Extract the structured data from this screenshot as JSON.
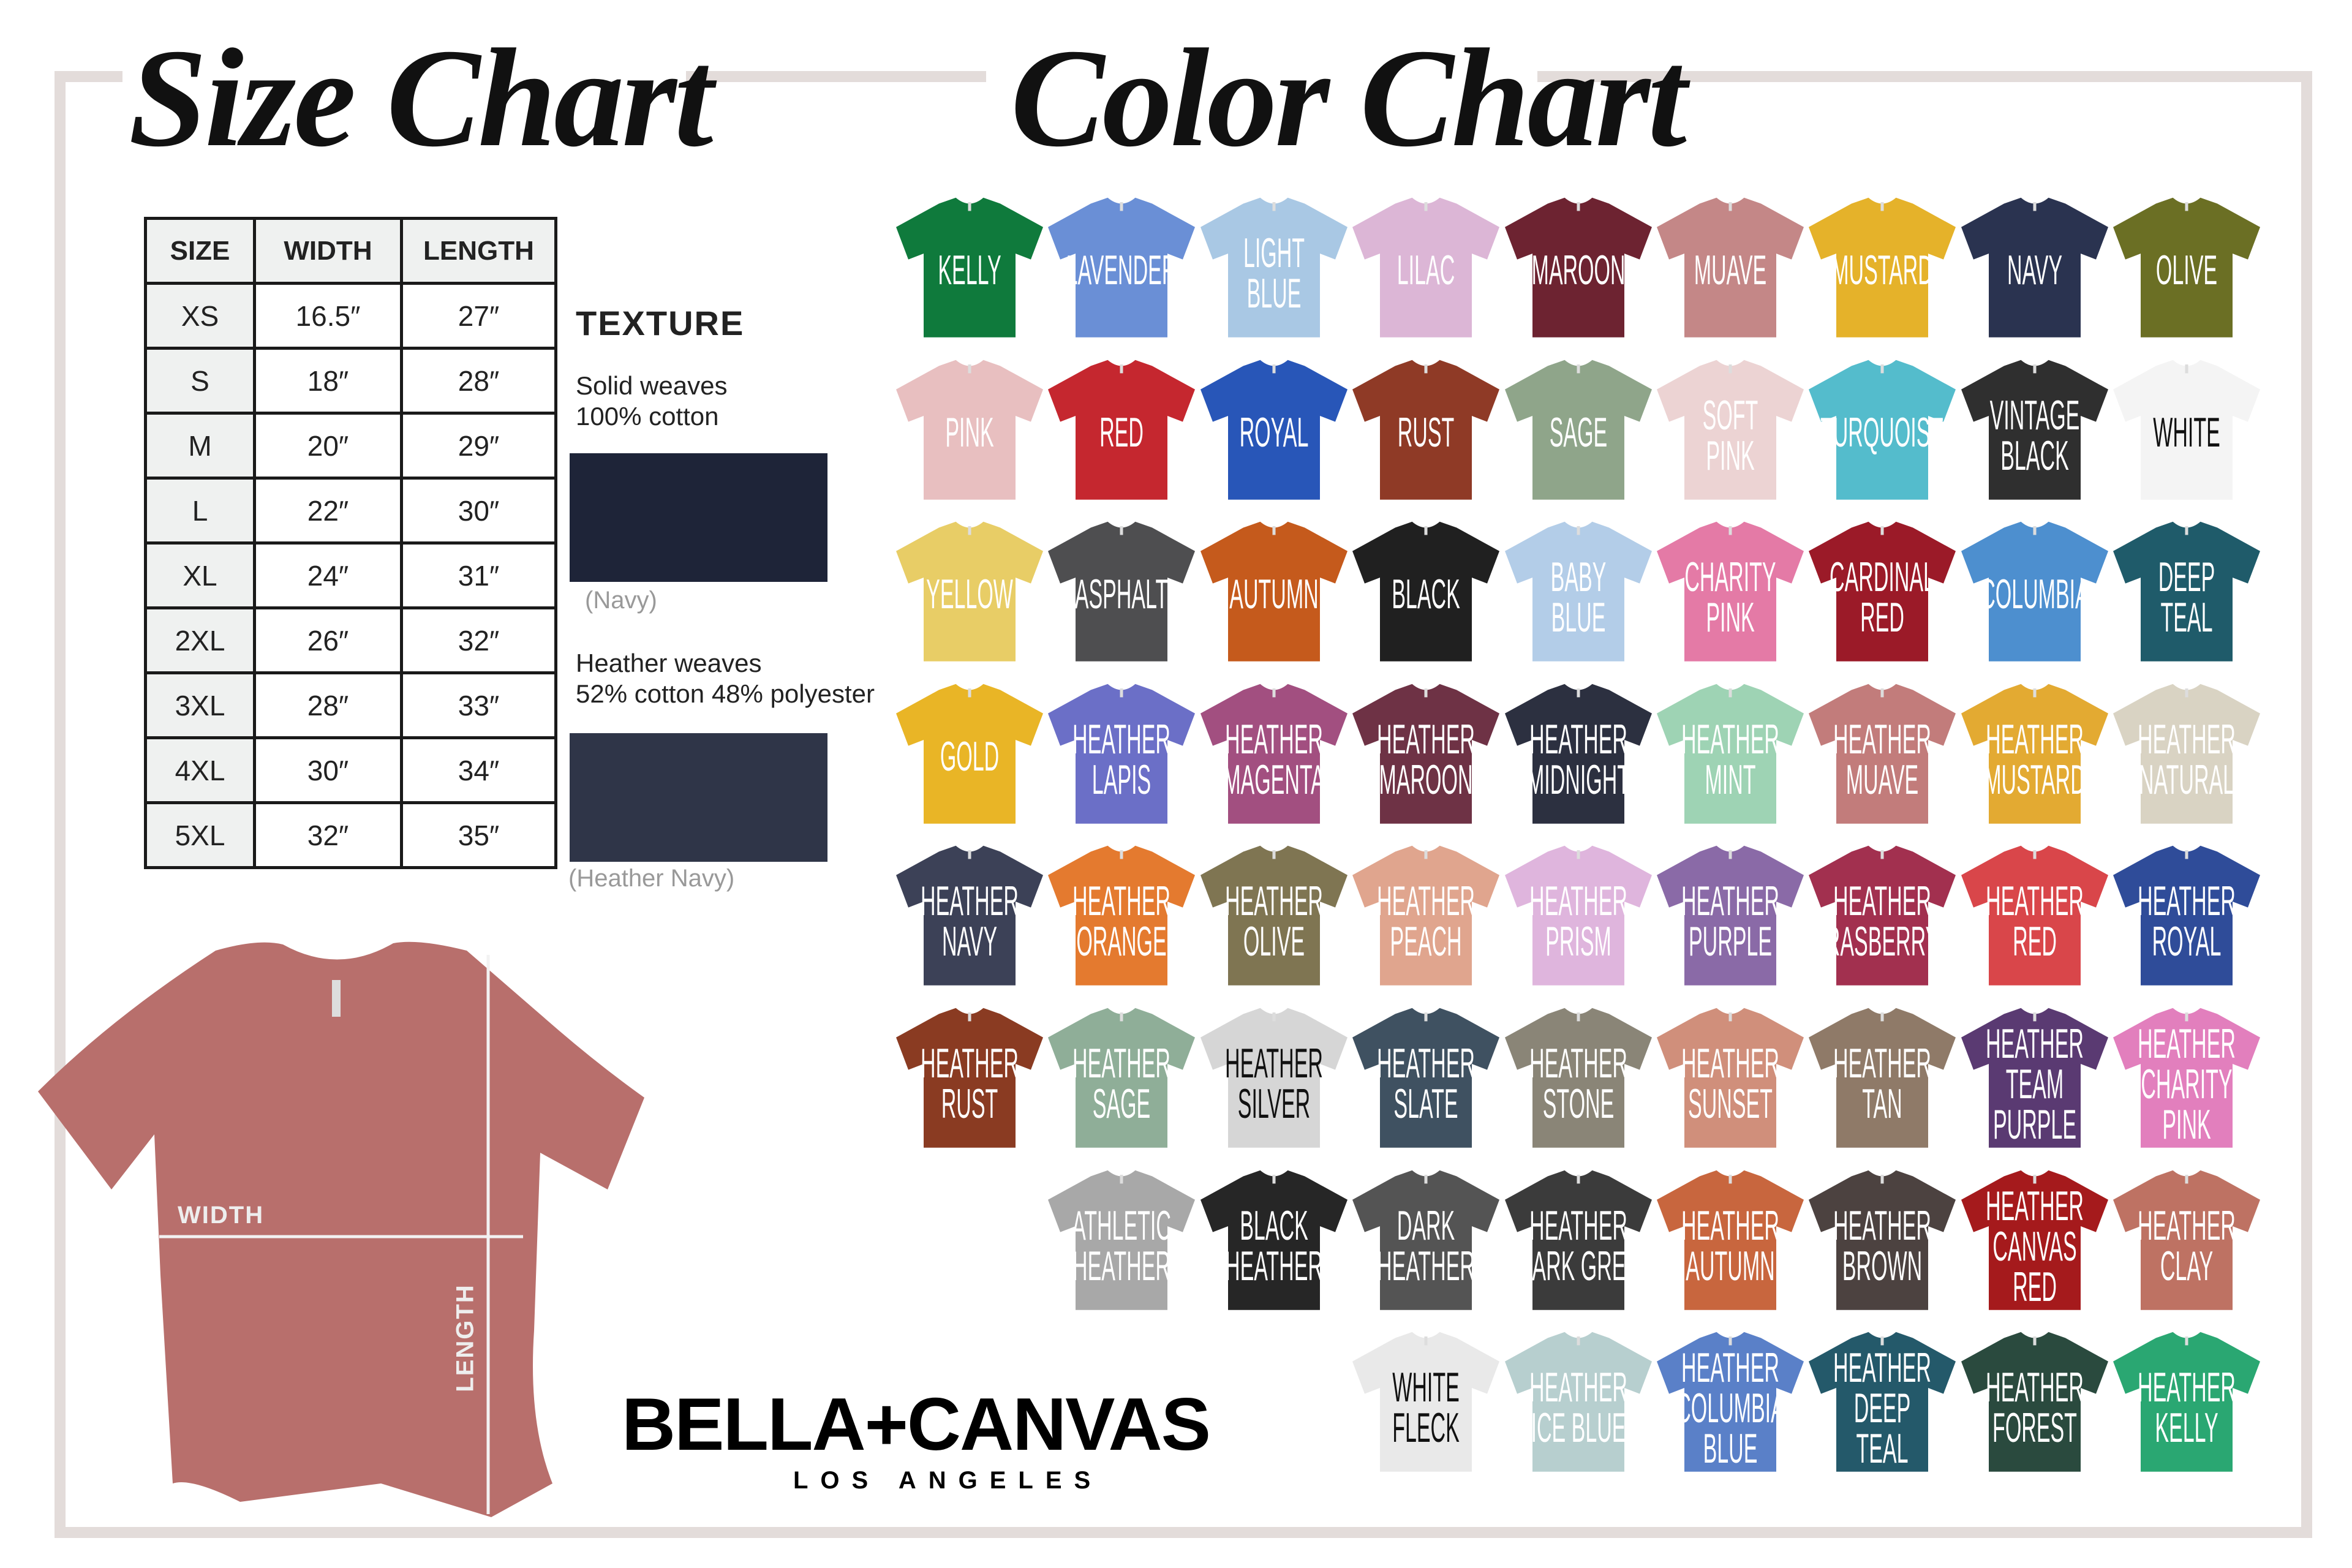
{
  "titles": {
    "size_chart": "Size Chart",
    "color_chart": "Color Chart"
  },
  "size_table": {
    "headers": [
      "SIZE",
      "WIDTH",
      "LENGTH"
    ],
    "rows": [
      [
        "XS",
        "16.5″",
        "27″"
      ],
      [
        "S",
        "18″",
        "28″"
      ],
      [
        "M",
        "20″",
        "29″"
      ],
      [
        "L",
        "22″",
        "30″"
      ],
      [
        "XL",
        "24″",
        "31″"
      ],
      [
        "2XL",
        "26″",
        "32″"
      ],
      [
        "3XL",
        "28″",
        "33″"
      ],
      [
        "4XL",
        "30″",
        "34″"
      ],
      [
        "5XL",
        "32″",
        "35″"
      ]
    ]
  },
  "texture": {
    "title": "TEXTURE",
    "solid_line1": "Solid weaves",
    "solid_line2": "100% cotton",
    "solid_caption": "(Navy)",
    "solid_color": "#1e2438",
    "heather_line1": "Heather weaves",
    "heather_line2": "52% cotton 48% polyester",
    "heather_caption": "(Heather Navy)",
    "heather_color": "#2f3548"
  },
  "illustration": {
    "width_label": "WIDTH",
    "length_label": "LENGTH",
    "shirt_color": "#b86f6c"
  },
  "brand": {
    "name": "BELLA+CANVAS",
    "location": "LOS ANGELES"
  },
  "frame_color": "#e3dcda",
  "colors": [
    {
      "row": 0,
      "col": 0,
      "name": "KELLY",
      "hex": "#0f7a3c"
    },
    {
      "row": 0,
      "col": 1,
      "name": "LAVENDER",
      "hex": "#6a8fd6"
    },
    {
      "row": 0,
      "col": 2,
      "name": "LIGHT BLUE",
      "hex": "#a9c8e4"
    },
    {
      "row": 0,
      "col": 3,
      "name": "LILAC",
      "hex": "#dcb6d6"
    },
    {
      "row": 0,
      "col": 4,
      "name": "MAROON",
      "hex": "#6d2331"
    },
    {
      "row": 0,
      "col": 5,
      "name": "MUAVE",
      "hex": "#c48787"
    },
    {
      "row": 0,
      "col": 6,
      "name": "MUSTARD",
      "hex": "#e5b22a"
    },
    {
      "row": 0,
      "col": 7,
      "name": "NAVY",
      "hex": "#2a3350"
    },
    {
      "row": 0,
      "col": 8,
      "name": "OLIVE",
      "hex": "#6b6f24"
    },
    {
      "row": 1,
      "col": 0,
      "name": "PINK",
      "hex": "#e8bfc0"
    },
    {
      "row": 1,
      "col": 1,
      "name": "RED",
      "hex": "#c5272f"
    },
    {
      "row": 1,
      "col": 2,
      "name": "ROYAL",
      "hex": "#2856b8"
    },
    {
      "row": 1,
      "col": 3,
      "name": "RUST",
      "hex": "#8f3a26"
    },
    {
      "row": 1,
      "col": 4,
      "name": "SAGE",
      "hex": "#8fa58a"
    },
    {
      "row": 1,
      "col": 5,
      "name": "SOFT PINK",
      "hex": "#ecd3d3"
    },
    {
      "row": 1,
      "col": 6,
      "name": "TURQUOISE",
      "hex": "#54bccc"
    },
    {
      "row": 1,
      "col": 7,
      "name": "VINTAGE BLACK",
      "hex": "#2f2f2f"
    },
    {
      "row": 1,
      "col": 8,
      "name": "WHITE",
      "hex": "#f4f4f4",
      "text": "#111111"
    },
    {
      "row": 2,
      "col": 0,
      "name": "YELLOW",
      "hex": "#e8cd66"
    },
    {
      "row": 2,
      "col": 1,
      "name": "ASPHALT",
      "hex": "#4e4e50"
    },
    {
      "row": 2,
      "col": 2,
      "name": "AUTUMN",
      "hex": "#c55a1c"
    },
    {
      "row": 2,
      "col": 3,
      "name": "BLACK",
      "hex": "#202020"
    },
    {
      "row": 2,
      "col": 4,
      "name": "BABY BLUE",
      "hex": "#b3cde8"
    },
    {
      "row": 2,
      "col": 5,
      "name": "CHARITY PINK",
      "hex": "#e47aa6"
    },
    {
      "row": 2,
      "col": 6,
      "name": "CARDINAL RED",
      "hex": "#9b1a28"
    },
    {
      "row": 2,
      "col": 7,
      "name": "COLUMBIA",
      "hex": "#4d8fcf"
    },
    {
      "row": 2,
      "col": 8,
      "name": "DEEP TEAL",
      "hex": "#1f5b6a"
    },
    {
      "row": 3,
      "col": 0,
      "name": "GOLD",
      "hex": "#e9b526"
    },
    {
      "row": 3,
      "col": 1,
      "name": "HEATHER LAPIS",
      "hex": "#6b6fc7"
    },
    {
      "row": 3,
      "col": 2,
      "name": "HEATHER MAGENTA",
      "hex": "#a24f80"
    },
    {
      "row": 3,
      "col": 3,
      "name": "HEATHER MAROON",
      "hex": "#6e3245"
    },
    {
      "row": 3,
      "col": 4,
      "name": "HEATHER MIDNIGHT",
      "hex": "#2c3040"
    },
    {
      "row": 3,
      "col": 5,
      "name": "HEATHER MINT",
      "hex": "#9ed3b4"
    },
    {
      "row": 3,
      "col": 6,
      "name": "HEATHER MUAVE",
      "hex": "#c27c7b"
    },
    {
      "row": 3,
      "col": 7,
      "name": "HEATHER MUSTARD",
      "hex": "#e3aa32"
    },
    {
      "row": 3,
      "col": 8,
      "name": "HEATHER NATURAL",
      "hex": "#d9d3c3"
    },
    {
      "row": 4,
      "col": 0,
      "name": "HEATHER NAVY",
      "hex": "#3c4157"
    },
    {
      "row": 4,
      "col": 1,
      "name": "HEATHER ORANGE",
      "hex": "#e47a2f"
    },
    {
      "row": 4,
      "col": 2,
      "name": "HEATHER OLIVE",
      "hex": "#7f7552"
    },
    {
      "row": 4,
      "col": 3,
      "name": "HEATHER PEACH",
      "hex": "#e0a58e"
    },
    {
      "row": 4,
      "col": 4,
      "name": "HEATHER PRISM",
      "hex": "#dfb5dd"
    },
    {
      "row": 4,
      "col": 5,
      "name": "HEATHER PURPLE",
      "hex": "#8a6aa7"
    },
    {
      "row": 4,
      "col": 6,
      "name": "HEATHER RASBERRY",
      "hex": "#a2304f"
    },
    {
      "row": 4,
      "col": 7,
      "name": "HEATHER RED",
      "hex": "#d9464a"
    },
    {
      "row": 4,
      "col": 8,
      "name": "HEATHER ROYAL",
      "hex": "#2f4c99"
    },
    {
      "row": 5,
      "col": 0,
      "name": "HEATHER RUST",
      "hex": "#8a3b22"
    },
    {
      "row": 5,
      "col": 1,
      "name": "HEATHER SAGE",
      "hex": "#8fae98"
    },
    {
      "row": 5,
      "col": 2,
      "name": "HEATHER SILVER",
      "hex": "#d6d6d6",
      "text": "#111111"
    },
    {
      "row": 5,
      "col": 3,
      "name": "HEATHER SLATE",
      "hex": "#3f5161"
    },
    {
      "row": 5,
      "col": 4,
      "name": "HEATHER STONE",
      "hex": "#8a8577"
    },
    {
      "row": 5,
      "col": 5,
      "name": "HEATHER SUNSET",
      "hex": "#d08f7b"
    },
    {
      "row": 5,
      "col": 6,
      "name": "HEATHER TAN",
      "hex": "#8f7a68"
    },
    {
      "row": 5,
      "col": 7,
      "name": "HEATHER TEAM PURPLE",
      "hex": "#5a3a72"
    },
    {
      "row": 5,
      "col": 8,
      "name": "HEATHER CHARITY PINK",
      "hex": "#e27fbd"
    },
    {
      "row": 6,
      "col": 1,
      "name": "ATHLETIC HEATHER",
      "hex": "#a8a8a8"
    },
    {
      "row": 6,
      "col": 2,
      "name": "BLACK HEATHER",
      "hex": "#262626"
    },
    {
      "row": 6,
      "col": 3,
      "name": "DARK HEATHER",
      "hex": "#545454"
    },
    {
      "row": 6,
      "col": 4,
      "name": "HEATHER DARK GREY",
      "hex": "#3b3b3b"
    },
    {
      "row": 6,
      "col": 5,
      "name": "HEATHER AUTUMN",
      "hex": "#c8663e"
    },
    {
      "row": 6,
      "col": 6,
      "name": "HEATHER BROWN",
      "hex": "#4c4240"
    },
    {
      "row": 6,
      "col": 7,
      "name": "HEATHER CANVAS RED",
      "hex": "#a51a1c"
    },
    {
      "row": 6,
      "col": 8,
      "name": "HEATHER CLAY",
      "hex": "#be7263"
    },
    {
      "row": 7,
      "col": 3,
      "name": "WHITE FLECK",
      "hex": "#e9e9e9",
      "text": "#111111"
    },
    {
      "row": 7,
      "col": 4,
      "name": "HEATHER ICE BLUE",
      "hex": "#b7cfcf"
    },
    {
      "row": 7,
      "col": 5,
      "name": "HEATHER COLUMBIA BLUE",
      "hex": "#5a80c8"
    },
    {
      "row": 7,
      "col": 6,
      "name": "HEATHER DEEP TEAL",
      "hex": "#24596a"
    },
    {
      "row": 7,
      "col": 7,
      "name": "HEATHER FOREST",
      "hex": "#2a4a3e"
    },
    {
      "row": 7,
      "col": 8,
      "name": "HEATHER KELLY",
      "hex": "#2aa772"
    }
  ]
}
